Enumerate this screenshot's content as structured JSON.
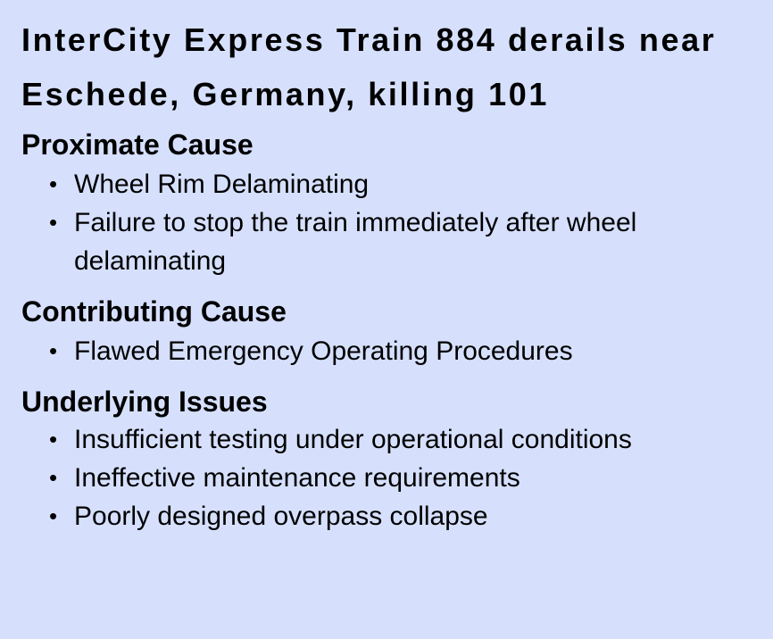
{
  "title": "InterCity Express Train 884 derails near Eschede, Germany, killing 101",
  "sections": [
    {
      "heading": "Proximate Cause",
      "items": [
        "Wheel Rim Delaminating",
        "Failure to stop the train immediately after wheel delaminating"
      ]
    },
    {
      "heading": "Contributing Cause",
      "items": [
        "Flawed Emergency Operating Procedures"
      ]
    },
    {
      "heading": "Underlying Issues",
      "items": [
        "Insufficient testing under operational conditions",
        "Ineffective maintenance requirements",
        "Poorly designed overpass collapse"
      ]
    }
  ],
  "bullet_symbol": "•",
  "colors": {
    "background": "#d6e0fd",
    "text": "#000000"
  }
}
